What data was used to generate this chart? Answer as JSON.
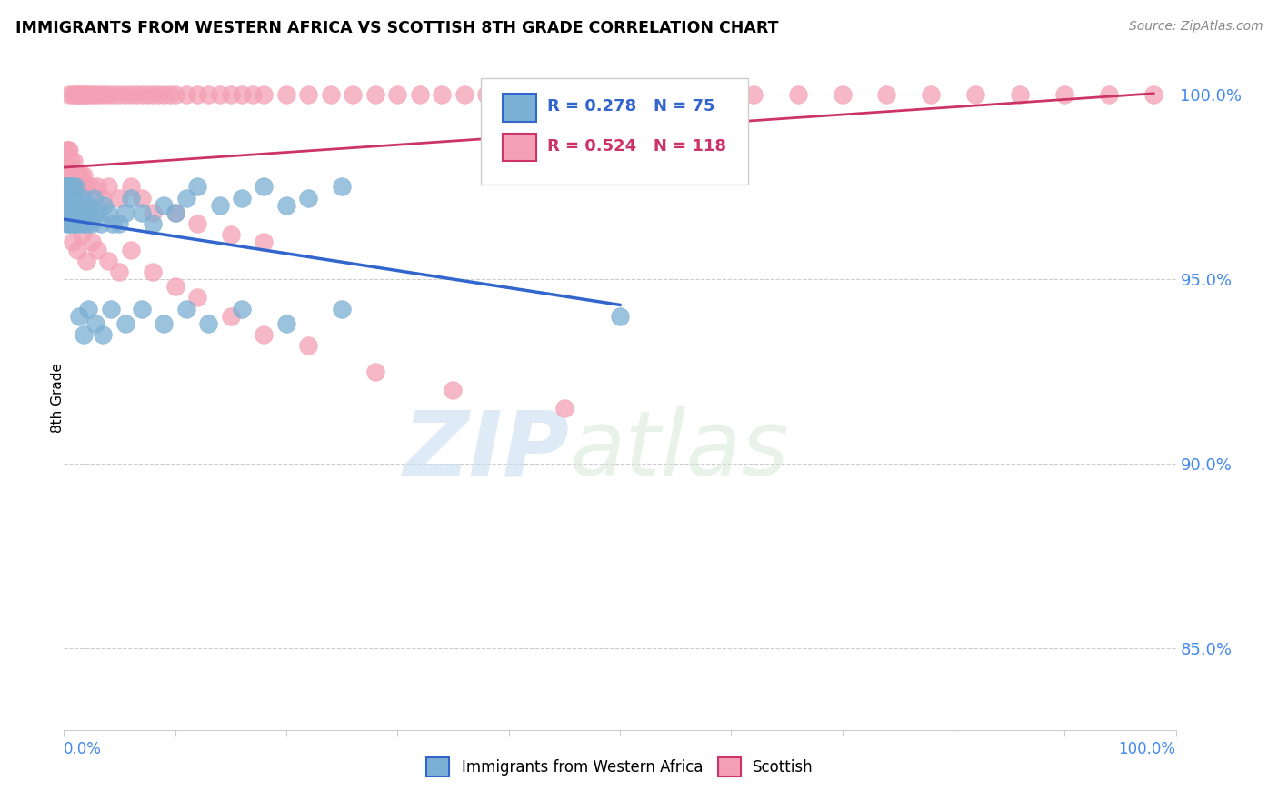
{
  "title": "IMMIGRANTS FROM WESTERN AFRICA VS SCOTTISH 8TH GRADE CORRELATION CHART",
  "source": "Source: ZipAtlas.com",
  "ylabel": "8th Grade",
  "legend_blue_label": "Immigrants from Western Africa",
  "legend_pink_label": "Scottish",
  "r_blue": 0.278,
  "n_blue": 75,
  "r_pink": 0.524,
  "n_pink": 118,
  "blue_color": "#7bafd4",
  "pink_color": "#f4a0b5",
  "trend_blue": "#3366cc",
  "trend_pink": "#cc3366",
  "ylim_min": 0.828,
  "ylim_max": 1.008,
  "xlim_min": 0.0,
  "xlim_max": 1.0,
  "yticks": [
    0.85,
    0.9,
    0.95,
    1.0
  ],
  "ytick_labels": [
    "85.0%",
    "90.0%",
    "95.0%",
    "100.0%"
  ],
  "blue_x": [
    0.001,
    0.001,
    0.002,
    0.002,
    0.002,
    0.003,
    0.003,
    0.003,
    0.004,
    0.004,
    0.004,
    0.005,
    0.005,
    0.005,
    0.006,
    0.006,
    0.007,
    0.007,
    0.008,
    0.008,
    0.009,
    0.009,
    0.01,
    0.01,
    0.011,
    0.011,
    0.012,
    0.013,
    0.014,
    0.015,
    0.016,
    0.017,
    0.018,
    0.019,
    0.02,
    0.021,
    0.022,
    0.023,
    0.025,
    0.027,
    0.03,
    0.033,
    0.036,
    0.04,
    0.044,
    0.05,
    0.055,
    0.06,
    0.07,
    0.08,
    0.09,
    0.1,
    0.11,
    0.12,
    0.14,
    0.16,
    0.18,
    0.2,
    0.22,
    0.25,
    0.014,
    0.018,
    0.022,
    0.028,
    0.035,
    0.042,
    0.055,
    0.07,
    0.09,
    0.11,
    0.13,
    0.16,
    0.2,
    0.25,
    0.5
  ],
  "blue_y": [
    0.975,
    0.97,
    0.975,
    0.972,
    0.968,
    0.975,
    0.97,
    0.965,
    0.975,
    0.97,
    0.965,
    0.972,
    0.968,
    0.975,
    0.97,
    0.965,
    0.972,
    0.968,
    0.975,
    0.97,
    0.965,
    0.972,
    0.975,
    0.968,
    0.972,
    0.965,
    0.97,
    0.968,
    0.965,
    0.97,
    0.968,
    0.972,
    0.965,
    0.97,
    0.968,
    0.965,
    0.97,
    0.968,
    0.965,
    0.972,
    0.968,
    0.965,
    0.97,
    0.968,
    0.965,
    0.965,
    0.968,
    0.972,
    0.968,
    0.965,
    0.97,
    0.968,
    0.972,
    0.975,
    0.97,
    0.972,
    0.975,
    0.97,
    0.972,
    0.975,
    0.94,
    0.935,
    0.942,
    0.938,
    0.935,
    0.942,
    0.938,
    0.942,
    0.938,
    0.942,
    0.938,
    0.942,
    0.938,
    0.942,
    0.94
  ],
  "pink_x_top": [
    0.005,
    0.008,
    0.01,
    0.012,
    0.014,
    0.016,
    0.018,
    0.02,
    0.022,
    0.025,
    0.028,
    0.032,
    0.036,
    0.04,
    0.045,
    0.05,
    0.055,
    0.06,
    0.065,
    0.07,
    0.075,
    0.08,
    0.085,
    0.09,
    0.095,
    0.1,
    0.11,
    0.12,
    0.13,
    0.14,
    0.15,
    0.16,
    0.17,
    0.18,
    0.2,
    0.22,
    0.24,
    0.26,
    0.28,
    0.3,
    0.32,
    0.34,
    0.36,
    0.38,
    0.4,
    0.43,
    0.46,
    0.5,
    0.54,
    0.58,
    0.62,
    0.66,
    0.7,
    0.74,
    0.78,
    0.82,
    0.86,
    0.9,
    0.94,
    0.98
  ],
  "pink_y_top": [
    1.0,
    1.0,
    1.0,
    1.0,
    1.0,
    1.0,
    1.0,
    1.0,
    1.0,
    1.0,
    1.0,
    1.0,
    1.0,
    1.0,
    1.0,
    1.0,
    1.0,
    1.0,
    1.0,
    1.0,
    1.0,
    1.0,
    1.0,
    1.0,
    1.0,
    1.0,
    1.0,
    1.0,
    1.0,
    1.0,
    1.0,
    1.0,
    1.0,
    1.0,
    1.0,
    1.0,
    1.0,
    1.0,
    1.0,
    1.0,
    1.0,
    1.0,
    1.0,
    1.0,
    1.0,
    1.0,
    1.0,
    1.0,
    1.0,
    1.0,
    1.0,
    1.0,
    1.0,
    1.0,
    1.0,
    1.0,
    1.0,
    1.0,
    1.0,
    1.0
  ],
  "pink_x_scatter": [
    0.001,
    0.002,
    0.002,
    0.003,
    0.003,
    0.004,
    0.005,
    0.005,
    0.006,
    0.007,
    0.008,
    0.009,
    0.01,
    0.012,
    0.014,
    0.016,
    0.018,
    0.02,
    0.025,
    0.03,
    0.035,
    0.04,
    0.05,
    0.06,
    0.07,
    0.08,
    0.1,
    0.12,
    0.15,
    0.18,
    0.008,
    0.012,
    0.016,
    0.02,
    0.025,
    0.03,
    0.04,
    0.05,
    0.06,
    0.08,
    0.1,
    0.12,
    0.15,
    0.18,
    0.22,
    0.28,
    0.35,
    0.45,
    0.002,
    0.003,
    0.004,
    0.005,
    0.006,
    0.007,
    0.009,
    0.011,
    0.013,
    0.015
  ],
  "pink_y_scatter": [
    0.978,
    0.975,
    0.982,
    0.978,
    0.985,
    0.975,
    0.98,
    0.975,
    0.978,
    0.975,
    0.978,
    0.975,
    0.978,
    0.975,
    0.978,
    0.975,
    0.978,
    0.975,
    0.975,
    0.975,
    0.972,
    0.975,
    0.972,
    0.975,
    0.972,
    0.968,
    0.968,
    0.965,
    0.962,
    0.96,
    0.96,
    0.958,
    0.962,
    0.955,
    0.96,
    0.958,
    0.955,
    0.952,
    0.958,
    0.952,
    0.948,
    0.945,
    0.94,
    0.935,
    0.932,
    0.925,
    0.92,
    0.915,
    0.982,
    0.985,
    0.98,
    0.985,
    0.982,
    0.978,
    0.982,
    0.978,
    0.975,
    0.978
  ]
}
